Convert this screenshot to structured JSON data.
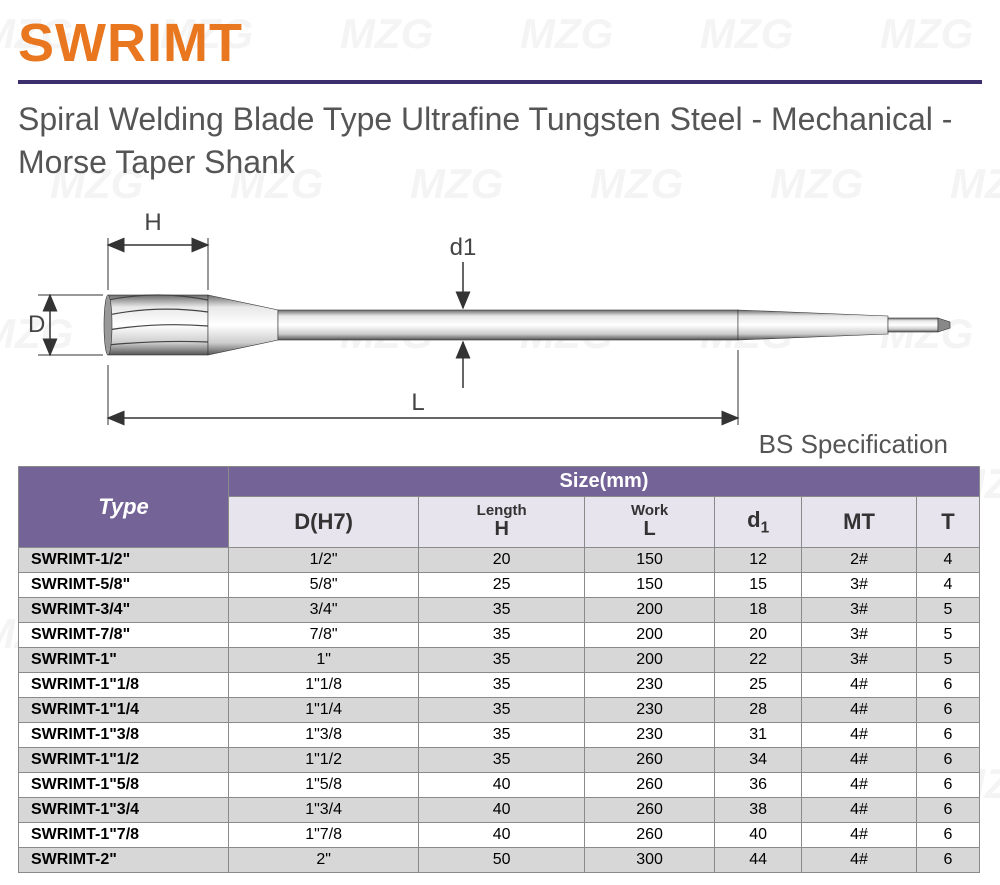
{
  "watermark_text": "MZG",
  "title": "SWRIMT",
  "subtitle": "Spiral Welding Blade Type Ultrafine Tungsten Steel - Mechanical - Morse Taper Shank",
  "diagram": {
    "label_H": "H",
    "label_D": "D",
    "label_d1": "d1",
    "label_L": "L",
    "spec_label": "BS Specification"
  },
  "colors": {
    "title": "#e8771f",
    "rule": "#3d2f6e",
    "text": "#555555",
    "th_bg": "#746397",
    "th_fg": "#ffffff",
    "sub_bg": "#e8e4ee",
    "row_odd": "#d7d7d7",
    "row_even": "#ffffff",
    "border": "#8a8a8a"
  },
  "table": {
    "type_header": "Type",
    "size_header": "Size(mm)",
    "columns": [
      {
        "main": "D(H7)",
        "sub": ""
      },
      {
        "main": "Length",
        "sub": "H"
      },
      {
        "main": "Work",
        "sub": "L"
      },
      {
        "main": "d",
        "sub": "1",
        "is_subscript": true
      },
      {
        "main": "MT",
        "sub": ""
      },
      {
        "main": "T",
        "sub": ""
      }
    ],
    "rows": [
      [
        "SWRIMT-1/2\"",
        "1/2\"",
        "20",
        "150",
        "12",
        "2#",
        "4"
      ],
      [
        "SWRIMT-5/8\"",
        "5/8\"",
        "25",
        "150",
        "15",
        "3#",
        "4"
      ],
      [
        "SWRIMT-3/4\"",
        "3/4\"",
        "35",
        "200",
        "18",
        "3#",
        "5"
      ],
      [
        "SWRIMT-7/8\"",
        "7/8\"",
        "35",
        "200",
        "20",
        "3#",
        "5"
      ],
      [
        "SWRIMT-1\"",
        "1\"",
        "35",
        "200",
        "22",
        "3#",
        "5"
      ],
      [
        "SWRIMT-1\"1/8",
        "1\"1/8",
        "35",
        "230",
        "25",
        "4#",
        "6"
      ],
      [
        "SWRIMT-1\"1/4",
        "1\"1/4",
        "35",
        "230",
        "28",
        "4#",
        "6"
      ],
      [
        "SWRIMT-1\"3/8",
        "1\"3/8",
        "35",
        "230",
        "31",
        "4#",
        "6"
      ],
      [
        "SWRIMT-1\"1/2",
        "1\"1/2",
        "35",
        "260",
        "34",
        "4#",
        "6"
      ],
      [
        "SWRIMT-1\"5/8",
        "1\"5/8",
        "40",
        "260",
        "36",
        "4#",
        "6"
      ],
      [
        "SWRIMT-1\"3/4",
        "1\"3/4",
        "40",
        "260",
        "38",
        "4#",
        "6"
      ],
      [
        "SWRIMT-1\"7/8",
        "1\"7/8",
        "40",
        "260",
        "40",
        "4#",
        "6"
      ],
      [
        "SWRIMT-2\"",
        "2\"",
        "50",
        "300",
        "44",
        "4#",
        "6"
      ]
    ]
  }
}
